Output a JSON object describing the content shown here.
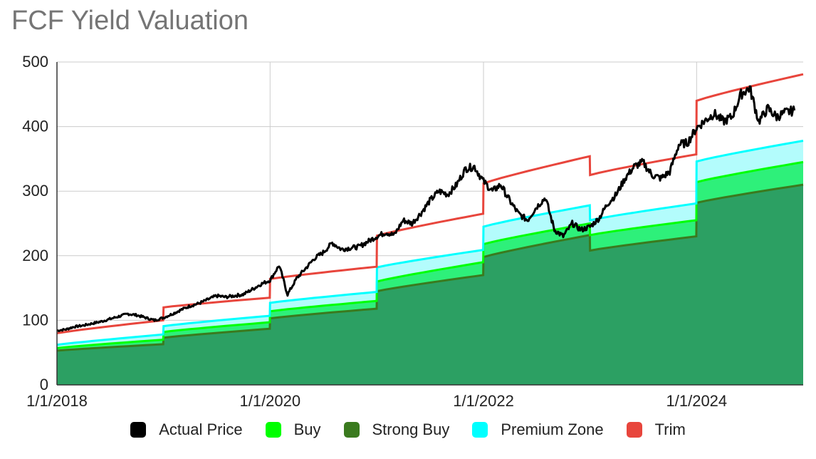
{
  "chart_data": {
    "type": "line",
    "title": "FCF Yield Valuation",
    "xlabel": "",
    "ylabel": "",
    "ylim": [
      0,
      500
    ],
    "yticks": [
      0,
      100,
      200,
      300,
      400,
      500
    ],
    "xlim": [
      "2018-01-01",
      "2024-12-31"
    ],
    "xticks": [
      "1/1/2018",
      "1/1/2020",
      "1/1/2022",
      "1/1/2024"
    ],
    "grid": true,
    "legend_position": "bottom",
    "colors": {
      "actual": "#000000",
      "buy": "#00ff00",
      "strong_buy": "#3a7a1e",
      "premium": "#00ffff",
      "trim": "#e8453c",
      "strong_fill": "#2ca063",
      "buy_fill": "#2ef07a",
      "premium_fill": "#b3fcfc"
    },
    "series": [
      {
        "name": "Strong Buy",
        "segments": [
          {
            "start": "2018-01-01",
            "end": "2018-12-31",
            "from": 53,
            "to": 63
          },
          {
            "start": "2019-01-01",
            "end": "2019-12-31",
            "from": 73,
            "to": 87
          },
          {
            "start": "2020-01-01",
            "end": "2020-12-31",
            "from": 103,
            "to": 118
          },
          {
            "start": "2021-01-01",
            "end": "2021-12-31",
            "from": 145,
            "to": 170
          },
          {
            "start": "2022-01-01",
            "end": "2022-12-31",
            "from": 198,
            "to": 232
          },
          {
            "start": "2023-01-01",
            "end": "2023-12-31",
            "from": 208,
            "to": 230
          },
          {
            "start": "2024-01-01",
            "end": "2024-12-31",
            "from": 282,
            "to": 310
          }
        ]
      },
      {
        "name": "Buy",
        "segments": [
          {
            "start": "2018-01-01",
            "end": "2018-12-31",
            "from": 57,
            "to": 70
          },
          {
            "start": "2019-01-01",
            "end": "2019-12-31",
            "from": 82,
            "to": 97
          },
          {
            "start": "2020-01-01",
            "end": "2020-12-31",
            "from": 114,
            "to": 130
          },
          {
            "start": "2021-01-01",
            "end": "2021-12-31",
            "from": 160,
            "to": 190
          },
          {
            "start": "2022-01-01",
            "end": "2022-12-31",
            "from": 218,
            "to": 250
          },
          {
            "start": "2023-01-01",
            "end": "2023-12-31",
            "from": 232,
            "to": 255
          },
          {
            "start": "2024-01-01",
            "end": "2024-12-31",
            "from": 314,
            "to": 345
          }
        ]
      },
      {
        "name": "Premium Zone",
        "segments": [
          {
            "start": "2018-01-01",
            "end": "2018-12-31",
            "from": 62,
            "to": 78
          },
          {
            "start": "2019-01-01",
            "end": "2019-12-31",
            "from": 91,
            "to": 107
          },
          {
            "start": "2020-01-01",
            "end": "2020-12-31",
            "from": 127,
            "to": 144
          },
          {
            "start": "2021-01-01",
            "end": "2021-12-31",
            "from": 182,
            "to": 209
          },
          {
            "start": "2022-01-01",
            "end": "2022-12-31",
            "from": 245,
            "to": 278
          },
          {
            "start": "2023-01-01",
            "end": "2023-12-31",
            "from": 255,
            "to": 281
          },
          {
            "start": "2024-01-01",
            "end": "2024-12-31",
            "from": 346,
            "to": 378
          }
        ]
      },
      {
        "name": "Trim",
        "segments": [
          {
            "start": "2018-01-01",
            "end": "2018-12-31",
            "from": 80,
            "to": 100
          },
          {
            "start": "2019-01-01",
            "end": "2019-12-31",
            "from": 120,
            "to": 135
          },
          {
            "start": "2020-01-01",
            "end": "2020-12-31",
            "from": 164,
            "to": 183
          },
          {
            "start": "2021-01-01",
            "end": "2021-12-31",
            "from": 231,
            "to": 265
          },
          {
            "start": "2022-01-01",
            "end": "2022-12-31",
            "from": 312,
            "to": 354
          },
          {
            "start": "2023-01-01",
            "end": "2023-12-31",
            "from": 325,
            "to": 357
          },
          {
            "start": "2024-01-01",
            "end": "2024-12-31",
            "from": 440,
            "to": 481
          }
        ]
      },
      {
        "name": "Actual Price",
        "points": [
          [
            "2018-01-01",
            84
          ],
          [
            "2018-02-01",
            86
          ],
          [
            "2018-03-01",
            90
          ],
          [
            "2018-04-01",
            92
          ],
          [
            "2018-05-01",
            95
          ],
          [
            "2018-06-01",
            98
          ],
          [
            "2018-07-01",
            102
          ],
          [
            "2018-08-01",
            106
          ],
          [
            "2018-09-01",
            110
          ],
          [
            "2018-10-01",
            108
          ],
          [
            "2018-11-01",
            104
          ],
          [
            "2018-12-01",
            100
          ],
          [
            "2019-01-01",
            104
          ],
          [
            "2019-02-01",
            110
          ],
          [
            "2019-03-01",
            116
          ],
          [
            "2019-04-01",
            122
          ],
          [
            "2019-05-01",
            126
          ],
          [
            "2019-06-01",
            132
          ],
          [
            "2019-07-01",
            138
          ],
          [
            "2019-08-01",
            136
          ],
          [
            "2019-09-01",
            138
          ],
          [
            "2019-10-01",
            140
          ],
          [
            "2019-11-01",
            148
          ],
          [
            "2019-12-01",
            156
          ],
          [
            "2020-01-01",
            162
          ],
          [
            "2020-02-01",
            185
          ],
          [
            "2020-03-01",
            140
          ],
          [
            "2020-04-01",
            165
          ],
          [
            "2020-05-01",
            180
          ],
          [
            "2020-06-01",
            196
          ],
          [
            "2020-07-01",
            205
          ],
          [
            "2020-08-01",
            220
          ],
          [
            "2020-09-01",
            210
          ],
          [
            "2020-10-01",
            212
          ],
          [
            "2020-11-01",
            214
          ],
          [
            "2020-12-01",
            222
          ],
          [
            "2021-01-01",
            230
          ],
          [
            "2021-02-01",
            236
          ],
          [
            "2021-03-01",
            232
          ],
          [
            "2021-04-01",
            255
          ],
          [
            "2021-05-01",
            250
          ],
          [
            "2021-06-01",
            266
          ],
          [
            "2021-07-01",
            285
          ],
          [
            "2021-08-01",
            300
          ],
          [
            "2021-09-01",
            295
          ],
          [
            "2021-10-01",
            310
          ],
          [
            "2021-11-01",
            335
          ],
          [
            "2021-12-01",
            338
          ],
          [
            "2022-01-01",
            315
          ],
          [
            "2022-02-01",
            300
          ],
          [
            "2022-03-01",
            310
          ],
          [
            "2022-04-01",
            285
          ],
          [
            "2022-05-01",
            265
          ],
          [
            "2022-06-01",
            255
          ],
          [
            "2022-07-01",
            275
          ],
          [
            "2022-08-01",
            290
          ],
          [
            "2022-09-01",
            240
          ],
          [
            "2022-10-01",
            230
          ],
          [
            "2022-11-01",
            250
          ],
          [
            "2022-12-01",
            240
          ],
          [
            "2023-01-01",
            245
          ],
          [
            "2023-02-01",
            258
          ],
          [
            "2023-03-01",
            280
          ],
          [
            "2023-04-01",
            295
          ],
          [
            "2023-05-01",
            320
          ],
          [
            "2023-06-01",
            338
          ],
          [
            "2023-07-01",
            345
          ],
          [
            "2023-08-01",
            325
          ],
          [
            "2023-09-01",
            320
          ],
          [
            "2023-10-01",
            330
          ],
          [
            "2023-11-01",
            372
          ],
          [
            "2023-12-01",
            375
          ],
          [
            "2024-01-01",
            398
          ],
          [
            "2024-02-01",
            410
          ],
          [
            "2024-03-01",
            420
          ],
          [
            "2024-04-01",
            408
          ],
          [
            "2024-05-01",
            415
          ],
          [
            "2024-06-01",
            450
          ],
          [
            "2024-07-01",
            460
          ],
          [
            "2024-08-01",
            408
          ],
          [
            "2024-09-01",
            428
          ],
          [
            "2024-10-01",
            415
          ],
          [
            "2024-11-01",
            422
          ],
          [
            "2024-12-01",
            425
          ]
        ]
      }
    ]
  },
  "legend": [
    {
      "label": "Actual Price",
      "color": "#000000"
    },
    {
      "label": "Buy",
      "color": "#00ff00"
    },
    {
      "label": "Strong Buy",
      "color": "#3a7a1e"
    },
    {
      "label": "Premium Zone",
      "color": "#00ffff"
    },
    {
      "label": "Trim",
      "color": "#e8453c"
    }
  ]
}
